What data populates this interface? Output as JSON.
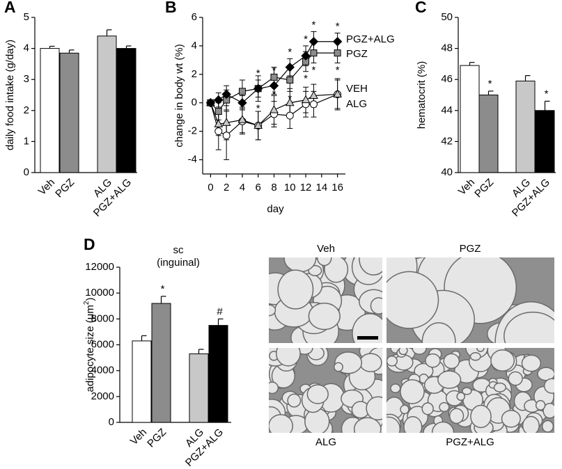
{
  "chart_data": [
    {
      "type": "bar",
      "panel_label": "A",
      "ylabel": "daily food intake (g/day)",
      "categories": [
        "Veh",
        "PGZ",
        "ALG",
        "PGZ+ALG"
      ],
      "values": [
        4.0,
        3.85,
        4.4,
        4.0
      ],
      "errors": [
        0.07,
        0.1,
        0.2,
        0.08
      ],
      "colors": [
        "#ffffff",
        "#8c8c8c",
        "#c8c8c8",
        "#000000"
      ],
      "significance": [
        null,
        null,
        null,
        null
      ],
      "ylim": [
        0,
        5
      ],
      "yticks": [
        0,
        1,
        2,
        3,
        4,
        5
      ]
    },
    {
      "type": "line",
      "panel_label": "B",
      "ylabel": "change in body wt (%)",
      "xlabel": "day",
      "x": [
        0,
        1,
        2,
        4,
        6,
        8,
        10,
        12,
        13,
        16
      ],
      "series": [
        {
          "name": "VEH",
          "color": "#ffffff",
          "marker": "circle",
          "values": [
            0,
            -2.0,
            -2.3,
            -1.3,
            -1.6,
            -0.8,
            -0.9,
            -0.1,
            -0.1,
            0.6
          ],
          "errors": [
            0,
            1.3,
            1.7,
            0.9,
            1.0,
            0.9,
            0.9,
            0.9,
            0.9,
            1.1
          ],
          "significance": [
            null,
            null,
            null,
            null,
            null,
            null,
            null,
            null,
            null,
            null
          ],
          "significance_position": "below"
        },
        {
          "name": "ALG",
          "color": "#c8c8c8",
          "marker": "triangle",
          "values": [
            0,
            -1.5,
            -1.4,
            -1.2,
            -1.6,
            -0.5,
            0.0,
            0.2,
            0.5,
            0.6
          ],
          "errors": [
            0,
            0.8,
            1.2,
            0.9,
            1.0,
            1.0,
            1.0,
            0.9,
            0.8,
            1.0
          ],
          "significance": [
            null,
            null,
            null,
            null,
            null,
            null,
            null,
            null,
            null,
            null
          ],
          "significance_position": "below"
        },
        {
          "name": "PGZ",
          "color": "#8c8c8c",
          "marker": "square",
          "values": [
            0,
            -0.6,
            0.2,
            0.8,
            1.0,
            1.8,
            1.6,
            2.9,
            3.5,
            3.5
          ],
          "errors": [
            0,
            0.6,
            0.7,
            0.8,
            0.9,
            0.7,
            0.8,
            0.7,
            0.7,
            0.7
          ],
          "significance": [
            null,
            null,
            null,
            null,
            "*",
            "*",
            "*",
            "*",
            "*",
            "*"
          ],
          "significance_position": "below"
        },
        {
          "name": "PGZ+ALG",
          "color": "#000000",
          "marker": "diamond",
          "values": [
            0,
            0.2,
            0.6,
            0.0,
            1.0,
            1.2,
            2.5,
            3.3,
            4.3,
            4.3
          ],
          "errors": [
            0,
            0.5,
            0.6,
            0.5,
            0.6,
            0.6,
            0.6,
            0.7,
            0.7,
            0.6
          ],
          "significance": [
            null,
            null,
            null,
            null,
            "*",
            "*",
            "*",
            "*",
            "*",
            "*"
          ],
          "significance_position": "above"
        }
      ],
      "xlim": [
        -1,
        17
      ],
      "xticks": [
        0,
        2,
        4,
        6,
        8,
        10,
        12,
        14,
        16
      ],
      "ylim": [
        -5,
        6
      ],
      "yticks": [
        -4,
        -2,
        0,
        2,
        4,
        6
      ]
    },
    {
      "type": "bar",
      "panel_label": "C",
      "ylabel": "hematocrit (%)",
      "categories": [
        "Veh",
        "PGZ",
        "ALG",
        "PGZ+ALG"
      ],
      "values": [
        46.9,
        45.0,
        45.9,
        44.0
      ],
      "errors": [
        0.2,
        0.25,
        0.35,
        0.6
      ],
      "colors": [
        "#ffffff",
        "#8c8c8c",
        "#c8c8c8",
        "#000000"
      ],
      "significance": [
        null,
        "*",
        null,
        "*"
      ],
      "ylim": [
        40,
        50
      ],
      "yticks": [
        40,
        42,
        44,
        46,
        48,
        50
      ]
    },
    {
      "type": "bar",
      "panel_label": "D",
      "title": "sc",
      "subtitle": "(inguinal)",
      "ylabel_parts": [
        "adipocyte size (μm",
        "2",
        ")"
      ],
      "categories": [
        "Veh",
        "PGZ",
        "ALG",
        "PGZ+ALG"
      ],
      "values": [
        6300,
        9200,
        5300,
        7500
      ],
      "errors": [
        400,
        550,
        350,
        500
      ],
      "colors": [
        "#ffffff",
        "#8c8c8c",
        "#c8c8c8",
        "#000000"
      ],
      "significance": [
        null,
        "*",
        null,
        "#"
      ],
      "ylim": [
        0,
        12000
      ],
      "yticks": [
        0,
        2000,
        4000,
        6000,
        8000,
        10000,
        12000
      ]
    }
  ],
  "micrographs": {
    "labels": [
      "Veh",
      "PGZ",
      "ALG",
      "PGZ+ALG"
    ]
  }
}
